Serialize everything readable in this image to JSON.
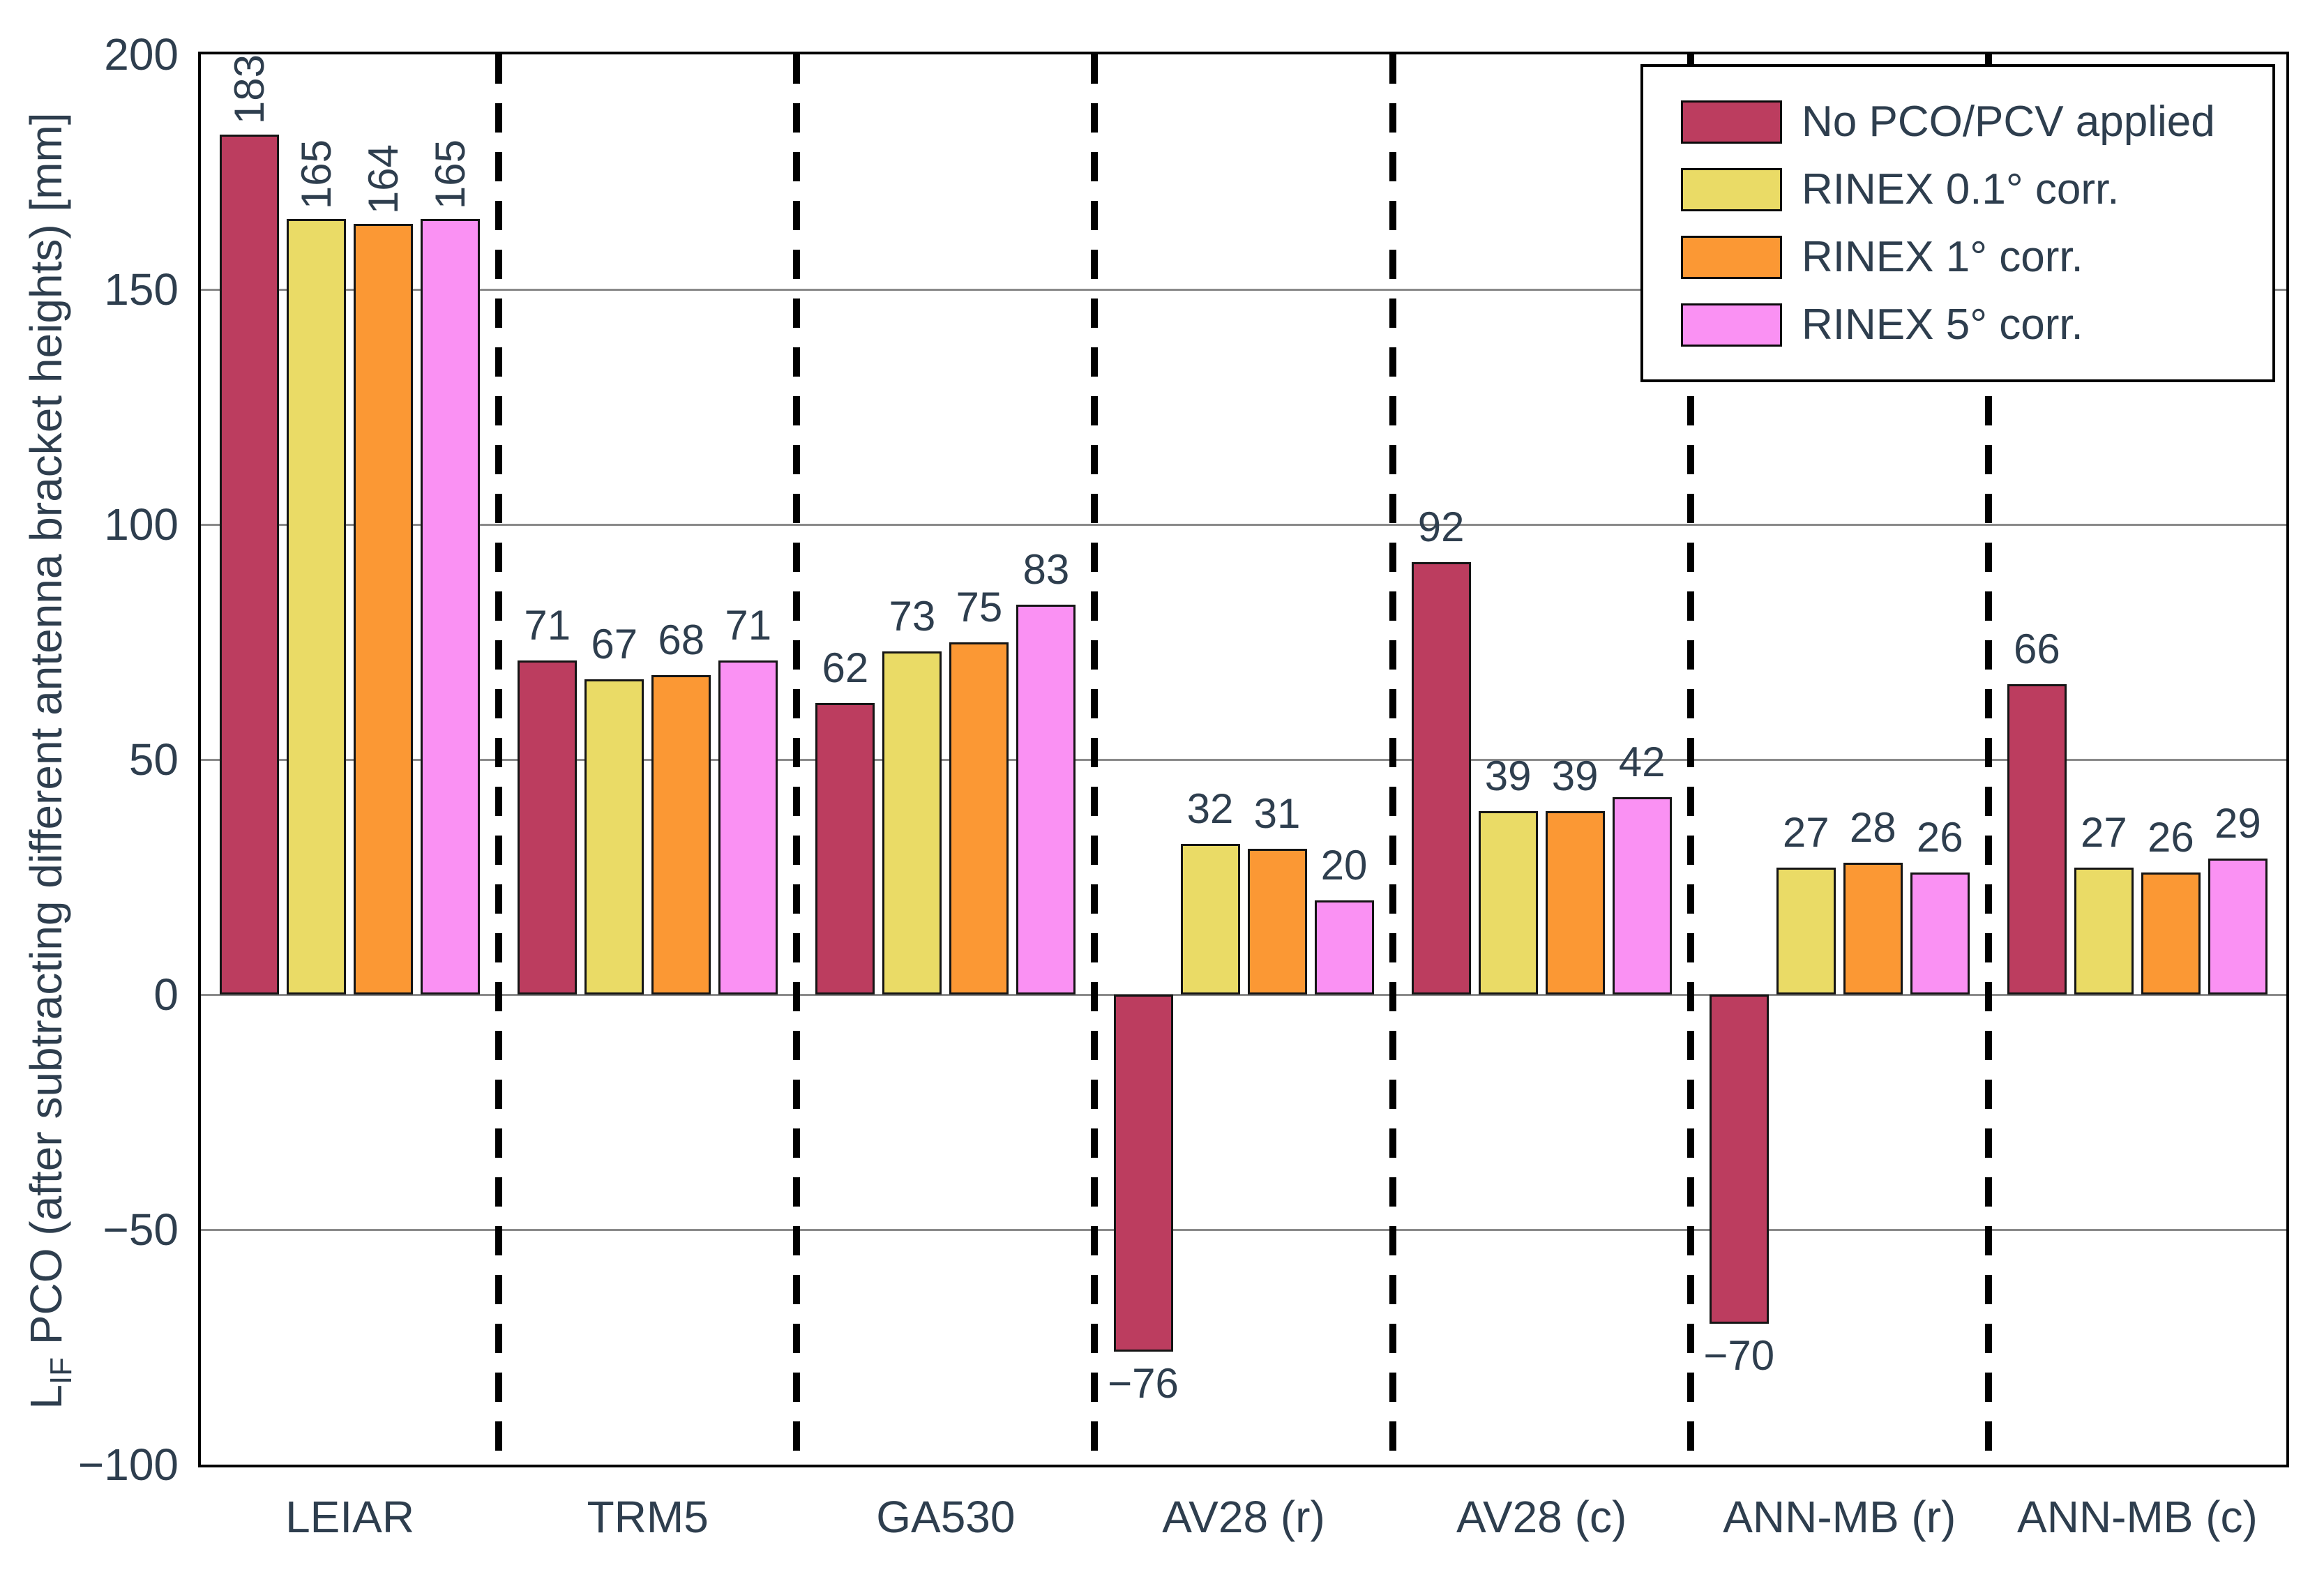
{
  "style": {
    "text_color": "#2E3E4E",
    "grid_color": "#8A8A8A",
    "axis_color": "#000000",
    "separator_color": "#000000",
    "bar_border_color": "#151515",
    "background": "#ffffff"
  },
  "chart_data": {
    "type": "bar",
    "title": "",
    "ylabel_parts": {
      "prefix": "L",
      "subscript": "IF",
      "rest": " PCO (after subtracting different antenna bracket heights) [mm]"
    },
    "categories": [
      "LEIAR",
      "TRM5",
      "GA530",
      "AV28 (r)",
      "AV28 (c)",
      "ANN-MB (r)",
      "ANN-MB (c)"
    ],
    "series": [
      {
        "name": "No PCO/PCV applied",
        "color": "#BC3D5F",
        "values": [
          183,
          71,
          62,
          -76,
          92,
          -70,
          66
        ]
      },
      {
        "name": "RINEX 0.1° corr.",
        "color": "#EADB66",
        "values": [
          165,
          67,
          73,
          32,
          39,
          27,
          27
        ]
      },
      {
        "name": "RINEX 1° corr.",
        "color": "#FB9834",
        "values": [
          164,
          68,
          75,
          31,
          39,
          28,
          26
        ]
      },
      {
        "name": "RINEX 5° corr.",
        "color": "#FA91F3",
        "values": [
          165,
          71,
          83,
          20,
          42,
          26,
          29
        ]
      }
    ],
    "ylim": [
      -100,
      200
    ],
    "yticks": [
      200,
      150,
      100,
      50,
      0,
      -50,
      -100
    ],
    "gridlines": [
      150,
      100,
      50,
      0,
      -50
    ],
    "grid": true,
    "legend_position": "top-right",
    "group_separators": "dashed",
    "rotated_value_label_categories": [
      "LEIAR"
    ]
  }
}
